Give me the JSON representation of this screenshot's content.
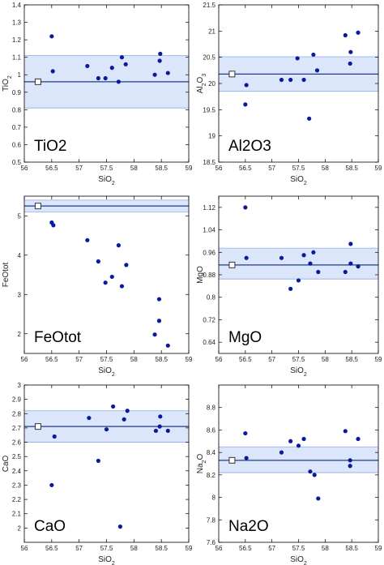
{
  "chart_data": [
    {
      "type": "scatter",
      "oxide": "TiO2",
      "big_label": "TiO2",
      "ylabel_main": "TiO",
      "ylabel_sub": "2",
      "xlabel_main": "SiO",
      "xlabel_sub": "2",
      "xlim": [
        56,
        59
      ],
      "ylim": [
        0.5,
        1.4
      ],
      "xticks": [
        "56",
        "56.5",
        "57",
        "57.5",
        "58",
        "58.5",
        "59"
      ],
      "yticks": [
        "0.5",
        "0.6",
        "0.7",
        "0.8",
        "0.9",
        "1",
        "1.1",
        "1.2",
        "1.3",
        "1.4"
      ],
      "points": [
        [
          56.5,
          1.22
        ],
        [
          56.52,
          1.02
        ],
        [
          57.15,
          1.05
        ],
        [
          57.35,
          0.98
        ],
        [
          57.48,
          0.98
        ],
        [
          57.6,
          1.04
        ],
        [
          57.72,
          0.96
        ],
        [
          57.78,
          1.1
        ],
        [
          57.85,
          1.06
        ],
        [
          58.38,
          1.0
        ],
        [
          58.47,
          1.08
        ],
        [
          58.48,
          1.12
        ],
        [
          58.62,
          1.01
        ]
      ],
      "reference": {
        "x": 56.25,
        "y": 0.96
      },
      "band": {
        "center": 0.96,
        "low": 0.81,
        "high": 1.11
      },
      "colors": {
        "points": "#0a1a9c",
        "band": "#dce6fb",
        "band_edge": "#8fa8e8",
        "line": "#1f3a8a"
      }
    },
    {
      "type": "scatter",
      "oxide": "Al2O3",
      "big_label": "Al2O3",
      "ylabel_main": "Al",
      "ylabel_sub": "2",
      "ylabel_main2": "O",
      "ylabel_sub2": "3",
      "xlabel_main": "SiO",
      "xlabel_sub": "2",
      "xlim": [
        56,
        59
      ],
      "ylim": [
        18.5,
        21.5
      ],
      "xticks": [
        "56",
        "56.5",
        "57",
        "57.5",
        "58",
        "58.5",
        "59"
      ],
      "yticks": [
        "18.5",
        "19",
        "19.5",
        "20",
        "20.5",
        "21",
        "21.5"
      ],
      "points": [
        [
          56.5,
          19.6
        ],
        [
          56.52,
          19.97
        ],
        [
          57.18,
          20.07
        ],
        [
          57.35,
          20.07
        ],
        [
          57.48,
          20.48
        ],
        [
          57.6,
          20.07
        ],
        [
          57.7,
          19.33
        ],
        [
          57.78,
          20.55
        ],
        [
          57.85,
          20.25
        ],
        [
          58.38,
          20.92
        ],
        [
          58.47,
          20.38
        ],
        [
          58.48,
          20.6
        ],
        [
          58.62,
          20.97
        ]
      ],
      "reference": {
        "x": 56.25,
        "y": 20.18
      },
      "band": {
        "center": 20.18,
        "low": 19.85,
        "high": 20.51
      },
      "colors": {
        "points": "#0a1a9c",
        "band": "#dce6fb",
        "band_edge": "#8fa8e8",
        "line": "#1f3a8a"
      }
    },
    {
      "type": "scatter",
      "oxide": "FeOtot",
      "big_label": "FeOtot",
      "ylabel_main": "FeOtot",
      "ylabel_sub": "",
      "xlabel_main": "SiO",
      "xlabel_sub": "2",
      "xlim": [
        56,
        59
      ],
      "ylim": [
        1.5,
        5.5
      ],
      "xticks": [
        "56",
        "56.5",
        "57",
        "57.5",
        "58",
        "58.5",
        "59"
      ],
      "yticks": [
        "2",
        "3",
        "4",
        "5"
      ],
      "points": [
        [
          56.5,
          4.83
        ],
        [
          56.53,
          4.76
        ],
        [
          57.15,
          4.38
        ],
        [
          57.35,
          3.84
        ],
        [
          57.48,
          3.3
        ],
        [
          57.6,
          3.45
        ],
        [
          57.72,
          4.25
        ],
        [
          57.78,
          3.21
        ],
        [
          57.86,
          3.75
        ],
        [
          58.38,
          1.98
        ],
        [
          58.46,
          2.33
        ],
        [
          58.46,
          2.88
        ],
        [
          58.62,
          1.7
        ]
      ],
      "reference": {
        "x": 56.25,
        "y": 5.25
      },
      "band": {
        "center": 5.25,
        "low": 5.1,
        "high": 5.4
      },
      "colors": {
        "points": "#0a1a9c",
        "band": "#dce6fb",
        "band_edge": "#8fa8e8",
        "line": "#1f3a8a"
      }
    },
    {
      "type": "scatter",
      "oxide": "MgO",
      "big_label": "MgO",
      "ylabel_main": "MgO",
      "ylabel_sub": "",
      "xlabel_main": "SiO",
      "xlabel_sub": "2",
      "xlim": [
        56,
        59
      ],
      "ylim": [
        0.6,
        1.16
      ],
      "xticks": [
        "56",
        "56.5",
        "57",
        "57.5",
        "58",
        "58.5",
        "59"
      ],
      "yticks": [
        "0.64",
        "0.72",
        "0.8",
        "0.88",
        "0.96",
        "1.04",
        "1.12"
      ],
      "points": [
        [
          56.5,
          1.12
        ],
        [
          56.52,
          0.94
        ],
        [
          57.18,
          0.94
        ],
        [
          57.35,
          0.83
        ],
        [
          57.5,
          0.86
        ],
        [
          57.6,
          0.95
        ],
        [
          57.72,
          0.92
        ],
        [
          57.78,
          0.96
        ],
        [
          57.87,
          0.89
        ],
        [
          58.38,
          0.89
        ],
        [
          58.48,
          0.92
        ],
        [
          58.48,
          0.99
        ],
        [
          58.62,
          0.91
        ]
      ],
      "reference": {
        "x": 56.25,
        "y": 0.915
      },
      "band": {
        "center": 0.915,
        "low": 0.865,
        "high": 0.975
      },
      "colors": {
        "points": "#0a1a9c",
        "band": "#dce6fb",
        "band_edge": "#8fa8e8",
        "line": "#1f3a8a"
      }
    },
    {
      "type": "scatter",
      "oxide": "CaO",
      "big_label": "CaO",
      "ylabel_main": "CaO",
      "ylabel_sub": "",
      "xlabel_main": "SiO",
      "xlabel_sub": "2",
      "xlim": [
        56,
        59
      ],
      "ylim": [
        1.9,
        3.0
      ],
      "xticks": [
        "56",
        "56.5",
        "57",
        "57.5",
        "58",
        "58.5",
        "59"
      ],
      "yticks": [
        "2",
        "2.1",
        "2.2",
        "2.3",
        "2.4",
        "2.5",
        "2.6",
        "2.7",
        "2.8",
        "2.9",
        "3"
      ],
      "points": [
        [
          56.5,
          2.3
        ],
        [
          56.55,
          2.64
        ],
        [
          57.18,
          2.77
        ],
        [
          57.35,
          2.47
        ],
        [
          57.5,
          2.69
        ],
        [
          57.62,
          2.85
        ],
        [
          57.75,
          2.01
        ],
        [
          57.82,
          2.76
        ],
        [
          57.88,
          2.82
        ],
        [
          58.4,
          2.68
        ],
        [
          58.47,
          2.71
        ],
        [
          58.48,
          2.78
        ],
        [
          58.62,
          2.68
        ]
      ],
      "reference": {
        "x": 56.25,
        "y": 2.71
      },
      "band": {
        "center": 2.71,
        "low": 2.6,
        "high": 2.82
      },
      "colors": {
        "points": "#0a1a9c",
        "band": "#dce6fb",
        "band_edge": "#8fa8e8",
        "line": "#1f3a8a"
      }
    },
    {
      "type": "scatter",
      "oxide": "Na2O",
      "big_label": "Na2O",
      "ylabel_main": "Na",
      "ylabel_sub": "2",
      "ylabel_main2": "O",
      "ylabel_sub2": "",
      "xlabel_main": "SiO",
      "xlabel_sub": "2",
      "xlim": [
        56,
        59
      ],
      "ylim": [
        7.6,
        9.0
      ],
      "xticks": [
        "56",
        "56.5",
        "57",
        "57.5",
        "58",
        "58.5",
        "59"
      ],
      "yticks": [
        "7.6",
        "7.8",
        "8",
        "8.2",
        "8.4",
        "8.6",
        "8.8"
      ],
      "points": [
        [
          56.5,
          8.57
        ],
        [
          56.52,
          8.35
        ],
        [
          57.18,
          8.4
        ],
        [
          57.35,
          8.5
        ],
        [
          57.5,
          8.46
        ],
        [
          57.6,
          8.52
        ],
        [
          57.72,
          8.23
        ],
        [
          57.8,
          8.2
        ],
        [
          57.87,
          7.99
        ],
        [
          58.38,
          8.59
        ],
        [
          58.47,
          8.33
        ],
        [
          58.47,
          8.28
        ],
        [
          58.62,
          8.52
        ]
      ],
      "reference": {
        "x": 56.25,
        "y": 8.33
      },
      "band": {
        "center": 8.33,
        "low": 8.22,
        "high": 8.45
      },
      "colors": {
        "points": "#0a1a9c",
        "band": "#dce6fb",
        "band_edge": "#8fa8e8",
        "line": "#1f3a8a"
      }
    }
  ]
}
